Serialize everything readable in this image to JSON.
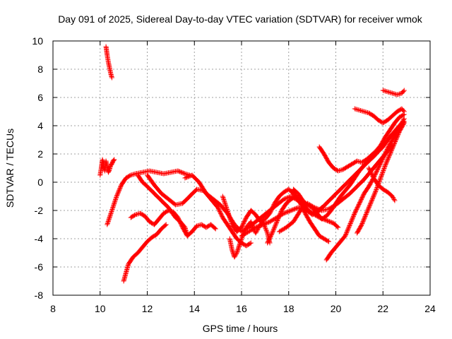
{
  "chart_data": {
    "type": "scatter",
    "title": "Day 091 of 2025, Sidereal Day-to-day VTEC variation (SDTVAR) for receiver wmok",
    "xlabel": "GPS time / hours",
    "ylabel": "SDTVAR / TECUs",
    "xlim": [
      8,
      24
    ],
    "ylim": [
      -8,
      10
    ],
    "xticks": [
      8,
      10,
      12,
      14,
      16,
      18,
      20,
      22,
      24
    ],
    "yticks": [
      -8,
      -6,
      -4,
      -2,
      0,
      2,
      4,
      6,
      8,
      10
    ],
    "grid": true,
    "marker": "+",
    "marker_color": "#ff0000",
    "traces": [
      {
        "x": [
          10.25,
          10.3,
          10.35,
          10.4,
          10.45,
          10.5
        ],
        "y": [
          9.6,
          9.0,
          8.5,
          8.1,
          7.7,
          7.4
        ]
      },
      {
        "x": [
          10.0,
          10.05,
          10.1,
          10.15,
          10.2,
          10.25,
          10.3,
          10.35,
          10.4,
          10.45,
          10.5,
          10.55,
          10.6
        ],
        "y": [
          0.5,
          1.0,
          1.6,
          1.2,
          0.8,
          1.5,
          1.1,
          0.7,
          0.9,
          1.2,
          1.3,
          1.5,
          1.6
        ]
      },
      {
        "x": [
          10.3,
          10.5,
          10.7,
          10.9,
          11.1,
          11.3,
          11.5,
          11.8,
          12.1,
          12.4,
          12.7,
          13.0,
          13.3,
          13.6,
          13.8
        ],
        "y": [
          -3.0,
          -2.0,
          -1.0,
          -0.2,
          0.3,
          0.5,
          0.6,
          0.7,
          0.8,
          0.7,
          0.6,
          0.7,
          0.8,
          0.6,
          0.5
        ]
      },
      {
        "x": [
          11.0,
          11.2,
          11.4,
          11.6,
          11.8,
          12.0,
          12.2,
          12.4,
          12.6,
          12.8
        ],
        "y": [
          -7.0,
          -5.8,
          -5.3,
          -5.0,
          -4.6,
          -4.2,
          -3.9,
          -3.7,
          -3.3,
          -3.0
        ]
      },
      {
        "x": [
          11.3,
          11.5,
          11.7,
          11.9,
          12.1,
          12.3,
          12.5,
          12.7,
          12.9,
          13.1,
          13.3,
          13.5,
          13.7,
          13.9,
          14.1,
          14.3,
          14.5,
          14.7,
          14.9
        ],
        "y": [
          -2.5,
          -2.3,
          -2.2,
          -2.4,
          -2.8,
          -3.0,
          -2.6,
          -2.2,
          -2.0,
          -2.1,
          -2.5,
          -3.2,
          -3.8,
          -3.5,
          -3.1,
          -3.0,
          -3.2,
          -3.0,
          -3.3
        ]
      },
      {
        "x": [
          11.6,
          11.8,
          12.0,
          12.3,
          12.6,
          12.9,
          13.2,
          13.4,
          13.6,
          13.7
        ],
        "y": [
          0.5,
          0.0,
          -0.3,
          -0.8,
          -1.3,
          -1.8,
          -2.5,
          -2.8,
          -3.2,
          -3.8
        ]
      },
      {
        "x": [
          12.0,
          12.3,
          12.6,
          12.9,
          13.2,
          13.5,
          13.8,
          14.1,
          14.4,
          14.7,
          15.0,
          15.2,
          15.4,
          15.6,
          15.8,
          16.0,
          16.2,
          16.4
        ],
        "y": [
          0.5,
          -0.2,
          -0.8,
          -1.2,
          -1.6,
          -1.5,
          -1.0,
          -0.5,
          -0.6,
          -1.2,
          -1.8,
          -2.5,
          -3.0,
          -3.5,
          -4.0,
          -4.3,
          -4.5,
          -4.3
        ]
      },
      {
        "x": [
          13.6,
          13.9,
          14.2,
          14.5,
          14.8,
          15.1,
          15.4,
          15.7,
          16.0,
          16.3,
          16.6,
          16.9,
          17.2,
          17.5,
          17.8,
          18.1,
          18.4,
          18.7,
          19.0,
          19.3,
          19.6,
          19.9,
          20.1
        ],
        "y": [
          0.3,
          0.5,
          0.0,
          -0.8,
          -1.2,
          -1.6,
          -2.2,
          -3.0,
          -3.5,
          -3.2,
          -2.8,
          -2.4,
          -2.0,
          -1.6,
          -1.2,
          -1.0,
          -1.3,
          -1.8,
          -2.2,
          -2.5,
          -2.7,
          -2.9,
          -3.2
        ]
      },
      {
        "x": [
          15.2,
          15.4,
          15.6,
          15.8,
          16.0,
          16.2,
          16.4,
          16.6,
          16.8,
          17.0,
          17.2,
          17.4,
          17.6,
          17.8,
          18.0,
          18.2,
          18.4,
          18.6,
          18.8,
          19.0,
          19.2,
          19.4
        ],
        "y": [
          -1.0,
          -2.0,
          -3.0,
          -3.5,
          -3.2,
          -2.5,
          -2.0,
          -2.3,
          -2.8,
          -2.6,
          -2.2,
          -1.5,
          -1.0,
          -0.7,
          -0.5,
          -0.8,
          -1.2,
          -1.6,
          -2.0,
          -2.3,
          -2.1,
          -1.8
        ]
      },
      {
        "x": [
          15.5,
          15.6,
          15.7,
          15.8,
          15.9,
          16.0,
          16.1,
          16.2,
          16.3,
          16.4,
          16.5,
          16.6,
          16.7,
          16.8,
          16.9,
          17.0,
          17.1,
          17.2
        ],
        "y": [
          -4.0,
          -4.8,
          -5.3,
          -5.0,
          -4.5,
          -4.0,
          -3.6,
          -3.2,
          -3.0,
          -2.8,
          -3.3,
          -3.6,
          -3.3,
          -3.0,
          -2.8,
          -3.2,
          -3.6,
          -4.3
        ]
      },
      {
        "x": [
          16.0,
          16.3,
          16.6,
          16.9,
          17.2,
          17.5,
          17.8,
          18.1,
          18.4,
          18.7,
          19.0,
          19.3,
          19.6,
          19.9,
          20.2,
          20.5,
          20.8,
          21.1,
          21.4,
          21.7,
          22.0,
          22.3,
          22.6,
          22.9
        ],
        "y": [
          -3.8,
          -3.5,
          -3.2,
          -3.0,
          -2.8,
          -2.5,
          -2.2,
          -2.0,
          -1.8,
          -2.0,
          -2.2,
          -2.0,
          -1.5,
          -1.0,
          -0.5,
          0.0,
          0.5,
          1.0,
          1.5,
          2.0,
          2.5,
          3.2,
          3.8,
          4.3
        ]
      },
      {
        "x": [
          17.1,
          17.3,
          17.5,
          17.7,
          17.9,
          18.1,
          18.3,
          18.5,
          18.7,
          18.9,
          19.1,
          19.3,
          19.5,
          19.7
        ],
        "y": [
          -4.3,
          -3.6,
          -2.8,
          -2.0,
          -1.5,
          -1.2,
          -1.0,
          -1.5,
          -2.2,
          -2.8,
          -3.3,
          -3.8,
          -4.0,
          -4.2
        ]
      },
      {
        "x": [
          17.6,
          17.9,
          18.2,
          18.5,
          18.8,
          19.1,
          19.4,
          19.7,
          20.0,
          20.3,
          20.6,
          20.9,
          21.2,
          21.5,
          21.8,
          22.0,
          22.2,
          22.4
        ],
        "y": [
          -3.5,
          -3.2,
          -2.8,
          -2.0,
          -1.5,
          -1.8,
          -2.0,
          -1.9,
          -1.6,
          -1.2,
          -0.8,
          -0.3,
          0.2,
          0.8,
          1.4,
          1.8,
          2.2,
          2.6
        ]
      },
      {
        "x": [
          18.2,
          18.4,
          18.6,
          18.8,
          19.0,
          19.2,
          19.4,
          19.6,
          19.8,
          20.0,
          20.2,
          20.4,
          20.6,
          20.8,
          21.0,
          21.2,
          21.4,
          21.6,
          21.8,
          22.0,
          22.2,
          22.4,
          22.6,
          22.8,
          22.9
        ],
        "y": [
          -0.5,
          -0.8,
          -1.3,
          -1.6,
          -1.8,
          -2.2,
          -2.6,
          -2.4,
          -2.0,
          -1.5,
          -1.0,
          -0.6,
          -0.2,
          0.3,
          0.8,
          1.2,
          1.5,
          1.8,
          2.2,
          2.6,
          3.0,
          3.4,
          3.8,
          4.2,
          4.5
        ]
      },
      {
        "x": [
          19.3,
          19.5,
          19.7,
          19.9,
          20.1,
          20.3,
          20.5,
          20.7,
          20.9,
          21.1,
          21.3,
          21.5,
          21.7,
          21.9,
          22.1,
          22.3,
          22.5,
          22.7,
          22.9
        ],
        "y": [
          2.5,
          2.0,
          1.4,
          1.0,
          0.8,
          0.9,
          1.1,
          1.3,
          1.5,
          1.4,
          1.6,
          1.9,
          2.2,
          2.6,
          3.2,
          3.7,
          4.2,
          4.6,
          4.8
        ]
      },
      {
        "x": [
          19.6,
          19.8,
          20.0,
          20.2,
          20.4,
          20.6,
          20.8,
          21.0,
          21.2,
          21.4,
          21.6,
          21.8,
          22.0,
          22.2,
          22.4,
          22.6,
          22.8
        ],
        "y": [
          -5.5,
          -5.0,
          -4.6,
          -4.2,
          -3.8,
          -3.0,
          -2.2,
          -1.5,
          -0.8,
          -0.3,
          0.3,
          1.0,
          1.7,
          2.4,
          3.0,
          3.6,
          4.2
        ]
      },
      {
        "x": [
          20.8,
          21.0,
          21.2,
          21.4,
          21.6,
          21.8,
          22.0,
          22.2,
          22.4,
          22.6,
          22.8,
          22.9
        ],
        "y": [
          5.2,
          5.1,
          5.0,
          4.9,
          4.7,
          4.4,
          4.2,
          4.4,
          4.7,
          5.0,
          5.2,
          5.0
        ]
      },
      {
        "x": [
          20.9,
          21.1,
          21.3,
          21.5,
          21.7,
          21.9,
          22.1,
          22.3,
          22.5,
          22.7,
          22.9
        ],
        "y": [
          -3.6,
          -3.0,
          -2.2,
          -1.4,
          -0.6,
          0.3,
          1.2,
          2.0,
          2.8,
          3.6,
          4.2
        ]
      },
      {
        "x": [
          21.4,
          21.6,
          21.8,
          22.0,
          22.2,
          22.4,
          22.5
        ],
        "y": [
          1.0,
          0.3,
          -0.2,
          -0.5,
          -0.7,
          -1.0,
          -1.3
        ]
      },
      {
        "x": [
          22.0,
          22.2,
          22.4,
          22.6,
          22.8,
          22.9
        ],
        "y": [
          6.5,
          6.4,
          6.3,
          6.2,
          6.3,
          6.5
        ]
      }
    ]
  }
}
